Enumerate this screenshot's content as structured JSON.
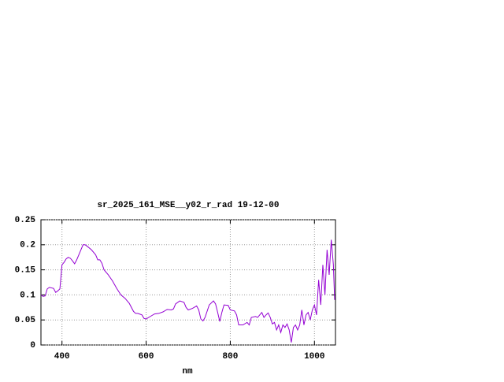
{
  "chart_data": {
    "type": "line",
    "title": "sr_2025_161_MSE__y02_r_rad 19-12-00",
    "x_label": "nm",
    "x": [
      350,
      355,
      360,
      365,
      370,
      380,
      385,
      390,
      395,
      400,
      405,
      410,
      415,
      420,
      425,
      430,
      435,
      440,
      445,
      450,
      455,
      460,
      470,
      480,
      485,
      490,
      495,
      500,
      510,
      520,
      530,
      540,
      550,
      560,
      570,
      575,
      580,
      590,
      595,
      600,
      610,
      620,
      630,
      640,
      650,
      660,
      665,
      670,
      680,
      690,
      695,
      700,
      710,
      720,
      725,
      730,
      735,
      740,
      750,
      760,
      765,
      770,
      775,
      780,
      785,
      795,
      800,
      810,
      815,
      820,
      830,
      840,
      845,
      850,
      860,
      865,
      870,
      875,
      880,
      885,
      890,
      895,
      900,
      905,
      910,
      915,
      920,
      925,
      930,
      935,
      940,
      945,
      950,
      955,
      960,
      965,
      970,
      975,
      980,
      985,
      990,
      995,
      1000,
      1005,
      1010,
      1015,
      1020,
      1025,
      1030,
      1035,
      1040,
      1045,
      1048
    ],
    "values": [
      0.1,
      0.097,
      0.098,
      0.112,
      0.115,
      0.113,
      0.105,
      0.108,
      0.112,
      0.16,
      0.165,
      0.172,
      0.175,
      0.173,
      0.168,
      0.162,
      0.17,
      0.18,
      0.19,
      0.2,
      0.2,
      0.197,
      0.19,
      0.18,
      0.17,
      0.17,
      0.163,
      0.15,
      0.14,
      0.128,
      0.113,
      0.1,
      0.093,
      0.083,
      0.067,
      0.063,
      0.063,
      0.06,
      0.053,
      0.052,
      0.057,
      0.062,
      0.063,
      0.066,
      0.071,
      0.07,
      0.072,
      0.082,
      0.088,
      0.085,
      0.075,
      0.07,
      0.073,
      0.078,
      0.07,
      0.052,
      0.048,
      0.055,
      0.08,
      0.088,
      0.082,
      0.065,
      0.047,
      0.065,
      0.08,
      0.079,
      0.07,
      0.068,
      0.06,
      0.04,
      0.04,
      0.045,
      0.04,
      0.055,
      0.057,
      0.055,
      0.06,
      0.065,
      0.055,
      0.06,
      0.064,
      0.055,
      0.042,
      0.045,
      0.03,
      0.04,
      0.025,
      0.04,
      0.035,
      0.042,
      0.03,
      0.005,
      0.035,
      0.04,
      0.03,
      0.04,
      0.07,
      0.04,
      0.06,
      0.065,
      0.05,
      0.07,
      0.08,
      0.06,
      0.13,
      0.08,
      0.16,
      0.1,
      0.19,
      0.14,
      0.21,
      0.16,
      0.09
    ],
    "color": "#9400d3",
    "xlim": [
      350,
      1050
    ],
    "xticks": [
      400,
      600,
      800,
      1000
    ],
    "ylim": [
      0,
      0.25
    ],
    "yticks": [
      0,
      0.05,
      0.1,
      0.15,
      0.2,
      0.25
    ],
    "grid": true
  }
}
